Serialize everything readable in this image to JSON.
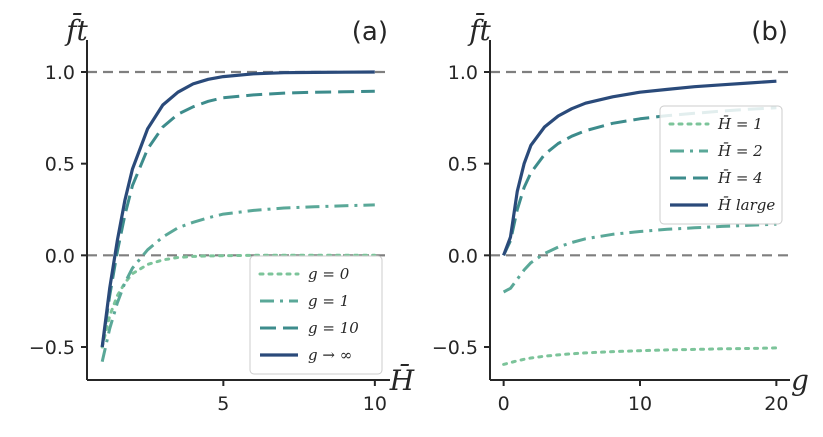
{
  "chart_data": [
    {
      "type": "line",
      "panel_label": "(a)",
      "xlabel": "H̄",
      "ylabel": "f̄t",
      "xlim": [
        0.5,
        10.5
      ],
      "ylim": [
        -0.68,
        1.12
      ],
      "xticks": [
        5,
        10
      ],
      "xtick_labels": [
        "5",
        "10"
      ],
      "yticks": [
        -0.5,
        0.0,
        0.5,
        1.0
      ],
      "ytick_labels": [
        "−0.5",
        "0.0",
        "0.5",
        "1.0"
      ],
      "reference_lines_y": [
        0.0,
        1.0
      ],
      "legend_position": "lower-right",
      "x": [
        1,
        1.25,
        1.5,
        1.75,
        2,
        2.5,
        3,
        3.5,
        4,
        4.5,
        5,
        6,
        7,
        8,
        9,
        10
      ],
      "series": [
        {
          "name": "g = 0",
          "style": "dotted",
          "color": "#7cc49a",
          "values": [
            -0.5,
            -0.33,
            -0.22,
            -0.15,
            -0.1,
            -0.05,
            -0.025,
            -0.012,
            -0.006,
            -0.003,
            -0.002,
            0,
            0,
            0,
            0,
            0
          ]
        },
        {
          "name": "g = 1",
          "style": "dashdot",
          "color": "#5aa898",
          "values": [
            -0.58,
            -0.4,
            -0.26,
            -0.15,
            -0.07,
            0.03,
            0.1,
            0.15,
            0.18,
            0.205,
            0.225,
            0.245,
            0.258,
            0.265,
            0.27,
            0.275
          ]
        },
        {
          "name": "g = 10",
          "style": "dashed",
          "color": "#3d8c8c",
          "values": [
            -0.5,
            -0.22,
            0.02,
            0.22,
            0.38,
            0.58,
            0.7,
            0.77,
            0.81,
            0.84,
            0.86,
            0.875,
            0.885,
            0.89,
            0.892,
            0.895
          ]
        },
        {
          "name": "g → ∞",
          "style": "solid",
          "color": "#2a4a7a",
          "values": [
            -0.5,
            -0.18,
            0.08,
            0.3,
            0.47,
            0.69,
            0.82,
            0.89,
            0.935,
            0.96,
            0.975,
            0.99,
            0.996,
            0.998,
            0.999,
            1.0
          ]
        }
      ]
    },
    {
      "type": "line",
      "panel_label": "(b)",
      "xlabel": "g",
      "ylabel": "f̄t",
      "xlim": [
        -1,
        21
      ],
      "ylim": [
        -0.68,
        1.12
      ],
      "xticks": [
        0,
        10,
        20
      ],
      "xtick_labels": [
        "0",
        "10",
        "20"
      ],
      "yticks": [
        -0.5,
        0.0,
        0.5,
        1.0
      ],
      "ytick_labels": [
        "−0.5",
        "0.0",
        "0.5",
        "1.0"
      ],
      "reference_lines_y": [
        0.0,
        1.0
      ],
      "legend_position": "upper-right",
      "x": [
        0,
        0.5,
        1,
        1.5,
        2,
        3,
        4,
        5,
        6,
        8,
        10,
        12,
        14,
        16,
        18,
        20
      ],
      "series": [
        {
          "name": "H̄ = 1",
          "style": "dotted",
          "color": "#7cc49a",
          "values": [
            -0.595,
            -0.585,
            -0.575,
            -0.567,
            -0.56,
            -0.55,
            -0.543,
            -0.537,
            -0.532,
            -0.525,
            -0.52,
            -0.516,
            -0.513,
            -0.51,
            -0.508,
            -0.505
          ]
        },
        {
          "name": "H̄ = 2",
          "style": "dashdot",
          "color": "#5aa898",
          "values": [
            -0.2,
            -0.18,
            -0.13,
            -0.08,
            -0.04,
            0.01,
            0.045,
            0.07,
            0.09,
            0.115,
            0.13,
            0.142,
            0.15,
            0.158,
            0.164,
            0.17
          ]
        },
        {
          "name": "H̄ = 4",
          "style": "dashed",
          "color": "#3d8c8c",
          "values": [
            0.0,
            0.08,
            0.25,
            0.37,
            0.45,
            0.55,
            0.61,
            0.65,
            0.68,
            0.72,
            0.745,
            0.762,
            0.775,
            0.787,
            0.797,
            0.805
          ]
        },
        {
          "name": "H̄ large",
          "style": "solid",
          "color": "#2a4a7a",
          "values": [
            0.0,
            0.1,
            0.35,
            0.5,
            0.6,
            0.7,
            0.76,
            0.8,
            0.83,
            0.865,
            0.89,
            0.905,
            0.92,
            0.93,
            0.94,
            0.95
          ]
        }
      ]
    }
  ]
}
